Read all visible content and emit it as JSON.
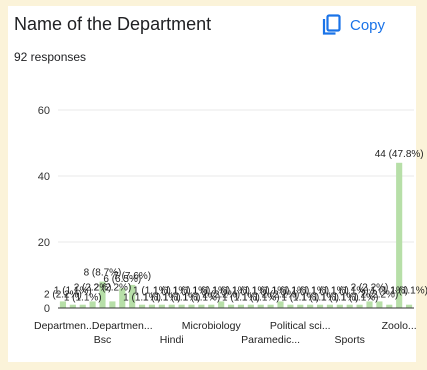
{
  "header": {
    "title": "Name of the Department",
    "responses": "92 responses",
    "copy_label": "Copy",
    "copy_icon": "copy-icon",
    "accent_color": "#1a73e8"
  },
  "chart_data": {
    "type": "bar",
    "bar_color": "#b7dfa8",
    "grid": true,
    "ylim": [
      0,
      60
    ],
    "yticks": [
      0,
      20,
      40,
      60
    ],
    "categories": [
      "Departmen...",
      "",
      "",
      "",
      "Bsc",
      "",
      "Departmen...",
      "",
      "",
      "",
      "",
      "Hindi",
      "",
      "",
      "",
      "Microbiology",
      "",
      "",
      "",
      "",
      "",
      "Paramedic...",
      "",
      "",
      "Political sci...",
      "",
      "",
      "",
      "",
      "Sports",
      "",
      "",
      "",
      "",
      "Zoolo...",
      ""
    ],
    "x_tick_labels": [
      {
        "text": "Departmen...",
        "index": 0,
        "row": 1
      },
      {
        "text": "Bsc",
        "index": 4,
        "row": 2
      },
      {
        "text": "Departmen...",
        "index": 6,
        "row": 1
      },
      {
        "text": "Hindi",
        "index": 11,
        "row": 2
      },
      {
        "text": "Microbiology",
        "index": 15,
        "row": 1
      },
      {
        "text": "Paramedic...",
        "index": 21,
        "row": 2
      },
      {
        "text": "Political sci...",
        "index": 24,
        "row": 1
      },
      {
        "text": "Sports",
        "index": 29,
        "row": 2
      },
      {
        "text": "Zoolo...",
        "index": 34,
        "row": 1
      }
    ],
    "values": [
      2,
      1,
      1,
      2,
      8,
      2,
      6,
      7,
      1,
      1,
      1,
      1,
      1,
      1,
      1,
      1,
      2,
      1,
      1,
      1,
      1,
      1,
      2,
      1,
      1,
      1,
      1,
      1,
      1,
      1,
      1,
      2,
      2,
      1,
      44,
      1
    ],
    "data_labels": [
      "2 (2.2%)",
      "1 (1.1%)",
      "1 (1.1%)",
      "2 (2.2%)",
      "8 (8.7%)",
      "2 (2.2%)",
      "6 (6.5%)",
      "7 (7.6%)",
      "1 (1.1%)",
      "1 (1.1%)",
      "1 (1.1%)",
      "1 (1.1%)",
      "1 (1.1%)",
      "1 (1.1%)",
      "1 (1.1%)",
      "1 (1.1%)",
      "2 (2.2%)",
      "1 (1.1%)",
      "1 (1.1%)",
      "1 (1.1%)",
      "1 (1.1%)",
      "1 (1.1%)",
      "2 (2.2%)",
      "1 (1.1%)",
      "1 (1.1%)",
      "1 (1.1%)",
      "1 (1.1%)",
      "1 (1.1%)",
      "1 (1.1%)",
      "1 (1.1%)",
      "1 (1.1%)",
      "2 (2.2%)",
      "2 (2.2%)",
      "1 (1.1%)",
      "44 (47.8%)",
      "1 (1.1%)"
    ]
  }
}
